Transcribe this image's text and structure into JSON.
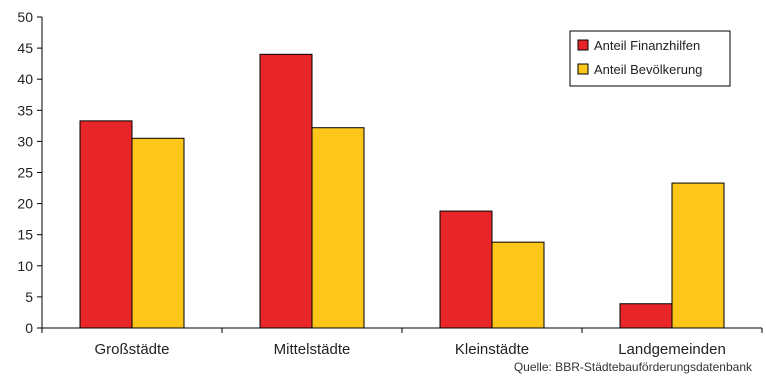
{
  "chart_data": {
    "type": "bar",
    "categories": [
      "Großstädte",
      "Mittelstädte",
      "Kleinstädte",
      "Landgemeinden"
    ],
    "series": [
      {
        "name": "Anteil Finanzhilfen",
        "color": "#e8262a",
        "values": [
          33.3,
          44.0,
          18.8,
          3.9
        ]
      },
      {
        "name": "Anteil Bevölkerung",
        "color": "#fcc61a",
        "values": [
          30.5,
          32.2,
          13.8,
          23.3
        ]
      }
    ],
    "ylim": [
      0,
      50
    ],
    "yticks": [
      0,
      5,
      10,
      15,
      20,
      25,
      30,
      35,
      40,
      45,
      50
    ],
    "grid": false,
    "legend_position": "top-right"
  },
  "source_note": "Quelle: BBR-Städtebauförderungsdatenbank"
}
